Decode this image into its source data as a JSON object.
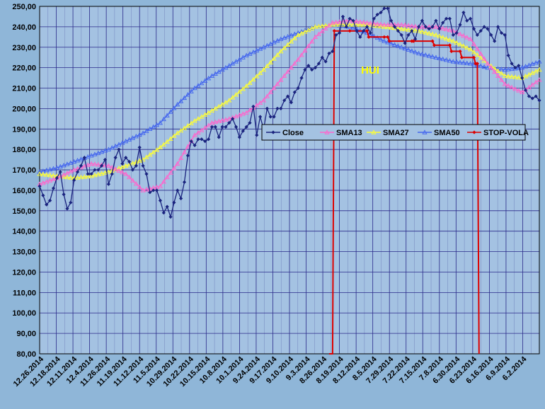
{
  "chart_data": {
    "type": "line",
    "title": "HUI",
    "xlabel": "",
    "ylabel": "",
    "ylim": [
      80,
      250
    ],
    "y_ticks": [
      "80,00",
      "90,00",
      "100,00",
      "110,00",
      "120,00",
      "130,00",
      "140,00",
      "150,00",
      "160,00",
      "170,00",
      "180,00",
      "190,00",
      "200,00",
      "210,00",
      "220,00",
      "230,00",
      "240,00",
      "250,00"
    ],
    "y_tick_values": [
      80,
      90,
      100,
      110,
      120,
      130,
      140,
      150,
      160,
      170,
      180,
      190,
      200,
      210,
      220,
      230,
      240,
      250
    ],
    "x_labels": [
      "12.26.2014",
      "12.18.2014",
      "12.11.2014",
      "12.4.2014",
      "11.26.2014",
      "11.19.2014",
      "11.12.2014",
      "11.5.2014",
      "10.29.2014",
      "10.22.2014",
      "10.15.2014",
      "10.8.2014",
      "10.1.2014",
      "9.24.2014",
      "9.17.2014",
      "9.10.2014",
      "9.3.2014",
      "8.26.2014",
      "8.19.2014",
      "8.12.2014",
      "8.5.2014",
      "7.29.2014",
      "7.22.2014",
      "7.15.2014",
      "7.8.2014",
      "6.30.2014",
      "6.23.2014",
      "6.16.2014",
      "6.9.2014",
      "6.2.2014"
    ],
    "grid": true,
    "legend_position": "right",
    "background_color": "#8fb6d8",
    "plot_color": "#a4c2e2",
    "grid_color": "#2a2a8a",
    "title_color": "#ffff00",
    "x_reversed": true,
    "x_domain": [
      0,
      145
    ],
    "series": [
      {
        "name": "Close",
        "color": "#1a237e",
        "marker": "diamond",
        "x": [
          0,
          1,
          2,
          3,
          4,
          5,
          6,
          7,
          8,
          9,
          10,
          11,
          12,
          13,
          14,
          15,
          16,
          17,
          18,
          19,
          20,
          21,
          22,
          23,
          24,
          25,
          26,
          27,
          28,
          29,
          30,
          31,
          32,
          33,
          34,
          35,
          36,
          37,
          38,
          39,
          40,
          41,
          42,
          43,
          44,
          45,
          46,
          47,
          48,
          49,
          50,
          51,
          52,
          53,
          54,
          55,
          56,
          57,
          58,
          59,
          60,
          61,
          62,
          63,
          64,
          65,
          66,
          67,
          68,
          69,
          70,
          71,
          72,
          73,
          74,
          75,
          76,
          77,
          78,
          79,
          80,
          81,
          82,
          83,
          84,
          85,
          86,
          87,
          88,
          89,
          90,
          91,
          92,
          93,
          94,
          95,
          96,
          97,
          98,
          99,
          100,
          101,
          102,
          103,
          104,
          105,
          106,
          107,
          108,
          109,
          110,
          111,
          112,
          113,
          114,
          115,
          116,
          117,
          118,
          119,
          120,
          121,
          122,
          123,
          124,
          125,
          126,
          127,
          128,
          129,
          130,
          131,
          132,
          133,
          134,
          135,
          136,
          137,
          138,
          139,
          140,
          141,
          142,
          143,
          144,
          145
        ],
        "y": [
          162,
          157.5,
          153,
          155,
          161,
          166,
          169,
          158,
          151,
          154,
          165,
          169,
          172,
          176,
          168,
          168,
          170,
          170,
          172,
          175,
          163,
          168,
          176,
          180,
          173,
          176,
          174,
          170,
          172,
          181,
          172,
          168,
          159,
          160,
          160,
          155,
          149,
          152,
          147,
          154,
          160,
          156,
          164,
          177,
          184,
          182,
          185,
          185,
          184,
          185,
          191,
          191,
          186,
          191,
          191,
          193,
          195,
          191,
          186,
          189,
          191,
          193,
          201,
          187,
          196,
          190,
          200,
          196,
          196,
          200,
          200,
          204,
          206,
          203,
          208,
          210,
          215,
          219,
          221,
          219,
          220,
          222,
          225,
          223,
          227,
          228,
          236,
          237,
          245,
          240,
          244,
          243,
          238,
          235,
          238,
          240,
          237,
          244,
          246,
          247,
          249,
          249,
          243,
          240,
          238,
          236,
          232,
          236,
          238,
          234,
          240,
          243,
          240,
          239,
          240,
          243,
          239,
          242,
          244,
          244,
          236,
          237,
          241,
          247,
          243,
          244,
          239,
          236,
          238,
          240,
          239,
          236,
          233,
          240,
          237,
          236,
          226,
          222,
          220,
          221,
          215,
          209,
          206,
          205,
          206,
          204
        ]
      },
      {
        "name": "SMA13",
        "color": "#ff66cc",
        "marker": "triangle",
        "x": [
          0,
          5,
          10,
          15,
          20,
          25,
          30,
          35,
          40,
          45,
          50,
          55,
          60,
          65,
          70,
          75,
          80,
          85,
          90,
          95,
          100,
          105,
          110,
          115,
          120,
          125,
          130,
          135,
          140,
          145
        ],
        "y": [
          163,
          166,
          170,
          173,
          172,
          168,
          160,
          162,
          173,
          187,
          193,
          195,
          198,
          204,
          214,
          224,
          235,
          242,
          243,
          242,
          241,
          241,
          240,
          240,
          238,
          234,
          222,
          212,
          208,
          214
        ]
      },
      {
        "name": "SMA27",
        "color": "#ffff33",
        "marker": "triangle",
        "x": [
          0,
          5,
          10,
          15,
          20,
          25,
          30,
          35,
          40,
          45,
          50,
          55,
          60,
          65,
          70,
          75,
          80,
          85,
          90,
          95,
          100,
          105,
          110,
          115,
          120,
          125,
          130,
          135,
          140,
          145
        ],
        "y": [
          168,
          167,
          166,
          167,
          169,
          172,
          175,
          181,
          188,
          194,
          199,
          204,
          211,
          219,
          228,
          236,
          240,
          241,
          241,
          241,
          240,
          239,
          238,
          236,
          233,
          229,
          222,
          216,
          215,
          219
        ]
      },
      {
        "name": "SMA50",
        "color": "#4466ee",
        "marker": "triangle",
        "x": [
          0,
          5,
          10,
          15,
          20,
          25,
          30,
          35,
          40,
          45,
          50,
          55,
          60,
          65,
          70,
          75,
          80,
          85,
          90,
          95,
          100,
          105,
          110,
          115,
          120,
          125,
          130,
          135,
          140,
          145
        ],
        "y": [
          169,
          171,
          174,
          177,
          180,
          184,
          188,
          193,
          202,
          210,
          216,
          221,
          226,
          230,
          234,
          237,
          240,
          241,
          240,
          237,
          233,
          230,
          227,
          225,
          223,
          222,
          220,
          219,
          220,
          223
        ]
      },
      {
        "name": "STOP-VOLA",
        "color": "#dd0000",
        "marker": "diamond",
        "x": [
          84,
          85,
          85.5,
          90,
          95,
          95.5,
          100,
          101,
          101.5,
          108,
          108.5,
          114,
          114.5,
          119,
          119.5,
          122,
          122.5,
          126,
          126.5,
          127,
          127.5
        ],
        "y": [
          80,
          80,
          238,
          238,
          238,
          235,
          235,
          235,
          233,
          233,
          233,
          233,
          231,
          231,
          228,
          228,
          225,
          225,
          222,
          222,
          80
        ]
      }
    ]
  }
}
